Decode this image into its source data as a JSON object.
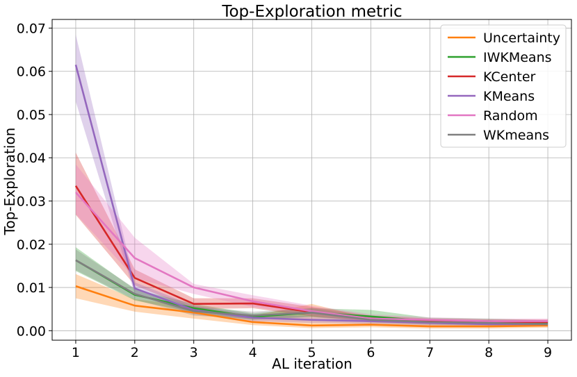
{
  "chart_data": {
    "type": "line",
    "title": "Top-Exploration metric",
    "xlabel": "AL iteration",
    "ylabel": "Top-Exploration",
    "xlim": [
      0.6,
      9.4
    ],
    "ylim": [
      -0.0022,
      0.072
    ],
    "x_ticks": [
      1,
      2,
      3,
      4,
      5,
      6,
      7,
      8,
      9
    ],
    "y_ticks": [
      0.0,
      0.01,
      0.02,
      0.03,
      0.04,
      0.05,
      0.06,
      0.07
    ],
    "y_tick_labels": [
      "0.00",
      "0.01",
      "0.02",
      "0.03",
      "0.04",
      "0.05",
      "0.06",
      "0.07"
    ],
    "grid": true,
    "legend_position": "top-right",
    "x": [
      1,
      2,
      3,
      4,
      5,
      6,
      7,
      8,
      9
    ],
    "series": [
      {
        "name": "Uncertainty",
        "color": "#ff7f0e",
        "values": [
          0.0103,
          0.0058,
          0.0042,
          0.002,
          0.0012,
          0.0014,
          0.001,
          0.001,
          0.0012
        ],
        "lower": [
          0.0075,
          0.0044,
          0.0028,
          0.0013,
          0.0006,
          0.0008,
          0.0005,
          0.0005,
          0.0007
        ],
        "upper": [
          0.0131,
          0.0073,
          0.0056,
          0.0035,
          0.0062,
          0.0028,
          0.0018,
          0.0016,
          0.0017
        ]
      },
      {
        "name": "IWKMeans",
        "color": "#2ca02c",
        "values": [
          0.0163,
          0.0083,
          0.0052,
          0.0032,
          0.0042,
          0.0033,
          0.0022,
          0.0022,
          0.0018
        ],
        "lower": [
          0.0138,
          0.007,
          0.0042,
          0.0025,
          0.0032,
          0.0025,
          0.0016,
          0.0017,
          0.0013
        ],
        "upper": [
          0.0193,
          0.0096,
          0.0062,
          0.004,
          0.0052,
          0.0048,
          0.003,
          0.0028,
          0.0024
        ]
      },
      {
        "name": "KCenter",
        "color": "#d62728",
        "values": [
          0.0335,
          0.0122,
          0.0062,
          0.0063,
          0.0043,
          0.0028,
          0.0022,
          0.002,
          0.002
        ],
        "lower": [
          0.0268,
          0.0105,
          0.005,
          0.0052,
          0.0033,
          0.0022,
          0.0017,
          0.0015,
          0.0016
        ],
        "upper": [
          0.0412,
          0.0142,
          0.0075,
          0.0075,
          0.0055,
          0.0035,
          0.0028,
          0.0026,
          0.0026
        ]
      },
      {
        "name": "KMeans",
        "color": "#9467bd",
        "values": [
          0.0615,
          0.0098,
          0.0048,
          0.003,
          0.0025,
          0.0022,
          0.0018,
          0.0015,
          0.0015
        ],
        "lower": [
          0.053,
          0.0085,
          0.0038,
          0.0022,
          0.0018,
          0.0016,
          0.0012,
          0.001,
          0.001
        ],
        "upper": [
          0.0685,
          0.0112,
          0.0058,
          0.0038,
          0.0032,
          0.0028,
          0.0024,
          0.0021,
          0.002
        ]
      },
      {
        "name": "Random",
        "color": "#e377c2",
        "values": [
          0.032,
          0.0168,
          0.01,
          0.0068,
          0.0045,
          0.0028,
          0.0025,
          0.0022,
          0.0022
        ],
        "lower": [
          0.027,
          0.0122,
          0.0085,
          0.0055,
          0.0035,
          0.002,
          0.0019,
          0.0016,
          0.0016
        ],
        "upper": [
          0.0385,
          0.0215,
          0.0108,
          0.0082,
          0.0058,
          0.0038,
          0.0031,
          0.0028,
          0.0028
        ]
      },
      {
        "name": "WKmeans",
        "color": "#7f7f7f",
        "values": [
          0.0163,
          0.0085,
          0.0045,
          0.0035,
          0.0042,
          0.0025,
          0.002,
          0.0018,
          0.0015
        ],
        "lower": [
          0.014,
          0.0072,
          0.0035,
          0.0027,
          0.0032,
          0.0019,
          0.0014,
          0.0012,
          0.001
        ],
        "upper": [
          0.0188,
          0.0098,
          0.0055,
          0.0044,
          0.0052,
          0.0032,
          0.0026,
          0.0024,
          0.002
        ]
      }
    ]
  }
}
